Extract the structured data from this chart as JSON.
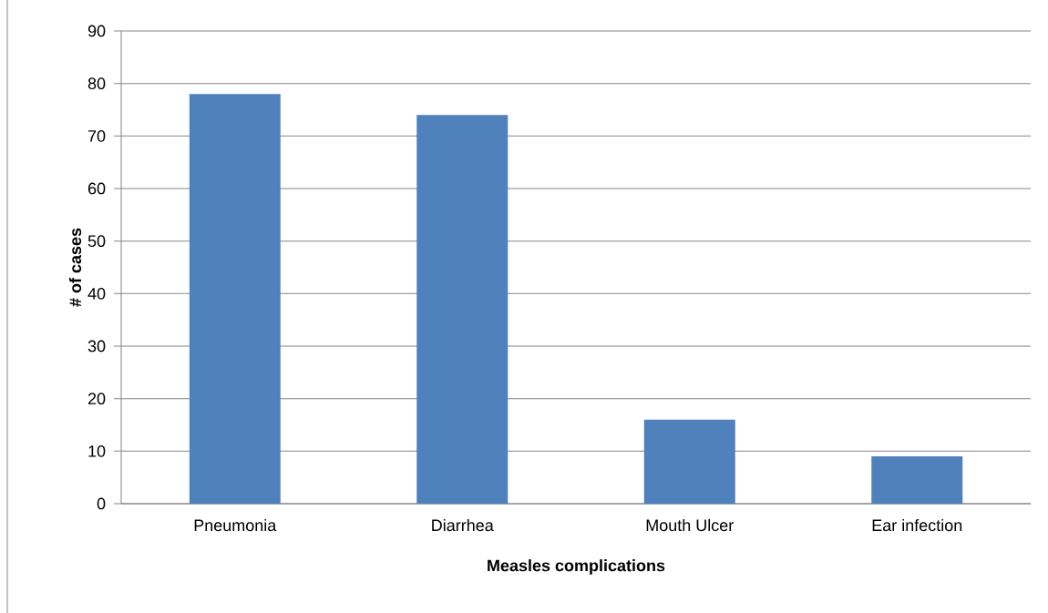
{
  "chart_data": {
    "type": "bar",
    "xlabel": "Measles complications",
    "ylabel": "# of cases",
    "categories": [
      "Pneumonia",
      "Diarrhea",
      "Mouth Ulcer",
      "Ear infection"
    ],
    "values": [
      78,
      74,
      16,
      9
    ],
    "color": "#4f81bd",
    "ylim": [
      0,
      90
    ],
    "yticks": [
      0,
      10,
      20,
      30,
      40,
      50,
      60,
      70,
      80,
      90
    ],
    "grid": "y"
  }
}
